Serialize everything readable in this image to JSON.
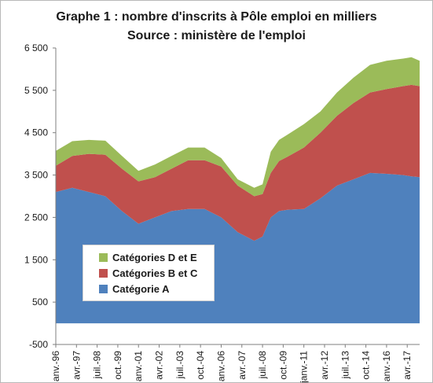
{
  "chart_data": {
    "type": "area",
    "stacked": true,
    "title": "Graphe 1 : nombre  d'inscrits à Pôle emploi en milliers",
    "subtitle": "Source : ministère de l'emploi",
    "ylim": [
      -500,
      6500
    ],
    "yticks": [
      "6 500",
      "5 500",
      "4 500",
      "3 500",
      "2 500",
      "1 500",
      "500",
      "-500"
    ],
    "ytick_values": [
      6500,
      5500,
      4500,
      3500,
      2500,
      1500,
      500,
      -500
    ],
    "xticks": [
      "janv.-96",
      "avr.-97",
      "juil.-98",
      "oct.-99",
      "janv.-01",
      "avr.-02",
      "juil.-03",
      "oct.-04",
      "janv.-06",
      "avr.-07",
      "juil.-08",
      "oct.-09",
      "janv.-11",
      "avr.-12",
      "juil.-13",
      "oct.-14",
      "janv.-16",
      "avr.-17"
    ],
    "x": [
      "1996-01",
      "1997-01",
      "1998-01",
      "1999-01",
      "2000-01",
      "2001-01",
      "2002-01",
      "2003-01",
      "2004-01",
      "2005-01",
      "2006-01",
      "2007-01",
      "2008-01",
      "2008-07",
      "2009-01",
      "2009-07",
      "2010-01",
      "2011-01",
      "2012-01",
      "2013-01",
      "2014-01",
      "2015-01",
      "2016-01",
      "2017-01",
      "2017-07",
      "2018-01"
    ],
    "series": [
      {
        "name": "Catégorie A",
        "color": "#4f81bd",
        "values": [
          3100,
          3200,
          3100,
          3000,
          2650,
          2350,
          2500,
          2650,
          2700,
          2700,
          2500,
          2150,
          1950,
          2050,
          2500,
          2650,
          2680,
          2700,
          2950,
          3250,
          3400,
          3550,
          3530,
          3500,
          3470,
          3450
        ]
      },
      {
        "name": "Catégories B et C",
        "color": "#c0504d",
        "values": [
          620,
          750,
          900,
          980,
          1000,
          1000,
          950,
          1000,
          1150,
          1150,
          1200,
          1100,
          1050,
          1000,
          1050,
          1180,
          1250,
          1450,
          1550,
          1650,
          1800,
          1900,
          2000,
          2100,
          2160,
          2150
        ]
      },
      {
        "name": "Catégories D et E",
        "color": "#9bbb59",
        "values": [
          350,
          350,
          330,
          330,
          300,
          250,
          300,
          300,
          300,
          300,
          200,
          150,
          200,
          230,
          500,
          500,
          520,
          550,
          500,
          550,
          600,
          650,
          670,
          650,
          650,
          600
        ]
      }
    ],
    "legend": {
      "position": "lower-left",
      "entries": [
        "Catégories D et E",
        "Catégories B et C",
        "Catégorie A"
      ]
    },
    "grid": false
  }
}
